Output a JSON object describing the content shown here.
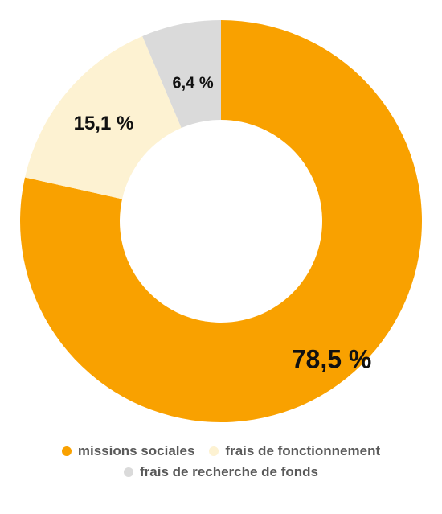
{
  "chart_data": {
    "type": "pie",
    "donut": true,
    "title": "",
    "slices": [
      {
        "name": "missions sociales",
        "value": 78.5,
        "label": "78,5 %",
        "color": "#F9A100"
      },
      {
        "name": "frais de fonctionnement",
        "value": 15.1,
        "label": "15,1 %",
        "color": "#FDF2D2"
      },
      {
        "name": "frais de recherche de fonds",
        "value": 6.4,
        "label": "6,4 %",
        "color": "#DADADA"
      }
    ],
    "legend": {
      "placement": "bottom"
    }
  }
}
